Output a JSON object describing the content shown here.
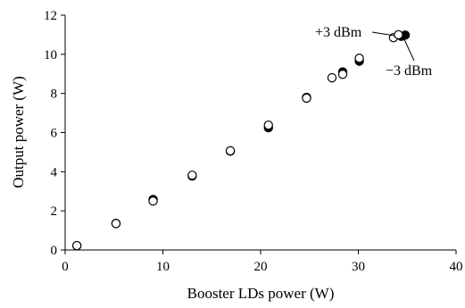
{
  "chart_data": {
    "type": "scatter",
    "title": "",
    "xlabel": "Booster LDs power (W)",
    "ylabel": "Output power (W)",
    "xlim": [
      0,
      40
    ],
    "ylim": [
      0,
      12
    ],
    "x_ticks": [
      0,
      10,
      20,
      30,
      40
    ],
    "y_ticks": [
      0,
      2,
      4,
      6,
      8,
      10,
      12
    ],
    "x_tick_labels": [
      "0",
      "10",
      "20",
      "30",
      "40"
    ],
    "y_tick_labels": [
      "0",
      "2",
      "4",
      "6",
      "8",
      "10",
      "12"
    ],
    "grid": false,
    "legend": "none",
    "series": [
      {
        "marker": "filled-circle",
        "color": "#000000",
        "points": [
          {
            "x": 1.2,
            "y": 0.22
          },
          {
            "x": 5.2,
            "y": 1.36
          },
          {
            "x": 9.0,
            "y": 2.58
          },
          {
            "x": 13.0,
            "y": 3.78
          },
          {
            "x": 16.9,
            "y": 5.05
          },
          {
            "x": 20.8,
            "y": 6.25
          },
          {
            "x": 24.7,
            "y": 7.8
          },
          {
            "x": 28.4,
            "y": 9.1
          },
          {
            "x": 30.1,
            "y": 9.65
          },
          {
            "x": 34.4,
            "y": 10.92
          },
          {
            "x": 34.8,
            "y": 10.98
          }
        ]
      },
      {
        "marker": "open-circle",
        "color": "#000000",
        "points": [
          {
            "x": 1.2,
            "y": 0.22
          },
          {
            "x": 5.2,
            "y": 1.35
          },
          {
            "x": 9.0,
            "y": 2.5
          },
          {
            "x": 13.0,
            "y": 3.82
          },
          {
            "x": 16.9,
            "y": 5.07
          },
          {
            "x": 20.8,
            "y": 6.38
          },
          {
            "x": 24.7,
            "y": 7.76
          },
          {
            "x": 27.3,
            "y": 8.8
          },
          {
            "x": 28.4,
            "y": 8.98
          },
          {
            "x": 30.1,
            "y": 9.8
          },
          {
            "x": 33.6,
            "y": 10.85
          },
          {
            "x": 34.1,
            "y": 11.0
          }
        ]
      }
    ],
    "annotations": [
      {
        "text": "+3 dBm",
        "points_to": {
          "x": 34.1,
          "y": 11.0
        }
      },
      {
        "text": "−3 dBm",
        "points_to": {
          "x": 34.8,
          "y": 10.98
        }
      }
    ]
  }
}
